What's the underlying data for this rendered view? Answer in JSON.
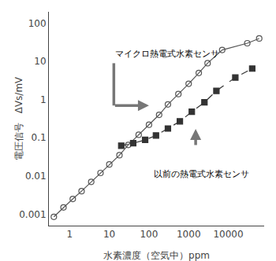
{
  "chart_data": {
    "type": "line",
    "xlabel": "水素濃度（空気中）ppm",
    "ylabel": "電圧信号　ΔVs/mV",
    "log": true,
    "grid": false,
    "xlim": [
      0.3,
      80000
    ],
    "ylim": [
      0.0005,
      200
    ],
    "xticks": [
      1,
      10,
      100,
      1000,
      10000
    ],
    "yticks": [
      0.001,
      0.01,
      0.1,
      1,
      10,
      100
    ],
    "series": [
      {
        "color": "#555555",
        "marker": "circle-open",
        "line_style": "solid",
        "x": [
          0.4,
          0.7,
          1.2,
          2.0,
          3.5,
          6.0,
          10,
          18,
          30,
          55,
          100,
          180,
          300,
          550,
          1000,
          1800,
          3000,
          7000,
          30000,
          60000
        ],
        "values": [
          0.00085,
          0.0015,
          0.0025,
          0.004,
          0.007,
          0.012,
          0.02,
          0.035,
          0.065,
          0.12,
          0.22,
          0.4,
          0.75,
          1.4,
          2.6,
          5.0,
          9.0,
          20,
          30,
          40
        ]
      },
      {
        "color": "#333333",
        "marker": "square",
        "line_style": "dash",
        "x": [
          20,
          40,
          80,
          150,
          300,
          600,
          1200,
          2500,
          5000,
          15000,
          40000
        ],
        "values": [
          0.062,
          0.072,
          0.088,
          0.115,
          0.175,
          0.27,
          0.48,
          0.85,
          1.7,
          3.8,
          6.5
        ]
      }
    ],
    "annotations": [
      {
        "text": "マイクロ熱電式水素センサ",
        "x": 13,
        "y": 10.35
      },
      {
        "text": "以前の熱電式水素センサ",
        "x": 120,
        "y": 0.0075
      }
    ],
    "arrows": [
      {
        "color": "#777777",
        "points": [
          [
            13,
            9.0
          ],
          [
            13,
            0.7
          ],
          [
            100,
            0.7
          ]
        ]
      },
      {
        "color": "#777777",
        "points": [
          [
            1500,
            0.06
          ],
          [
            1500,
            0.17
          ]
        ]
      }
    ]
  }
}
